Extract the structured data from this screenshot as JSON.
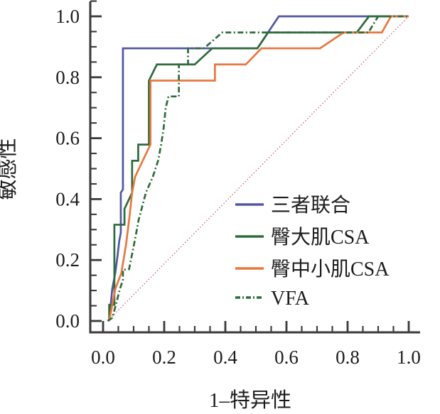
{
  "figure": {
    "background": "#ffffff",
    "axis_color": "#3a3a3a",
    "text_color": "#1c1c1c"
  },
  "chart_data": {
    "type": "line",
    "subtype": "roc-curve",
    "title": "",
    "xlabel": "1–特异性",
    "ylabel": "敏感性",
    "xlim": [
      0,
      1
    ],
    "ylim": [
      0,
      1
    ],
    "grid": "off",
    "tick_values": [
      0,
      0.2,
      0.4,
      0.6,
      0.8,
      1.0
    ],
    "x_tick_labels": [
      "0.0",
      "0.2",
      "0.4",
      "0.6",
      "0.8",
      "1.0"
    ],
    "y_tick_labels": [
      "0.0",
      "0.2",
      "0.4",
      "0.6",
      "0.8",
      "1.0"
    ],
    "minor_tick_step": 0.05,
    "legend_position": "lower right",
    "series": [
      {
        "name": "三者联合",
        "color": "#5057a3",
        "style": "solid",
        "points": [
          [
            0.02,
            0
          ],
          [
            0.03,
            0.105
          ],
          [
            0.04,
            0.158
          ],
          [
            0.047,
            0.211
          ],
          [
            0.053,
            0.263
          ],
          [
            0.058,
            0.29
          ],
          [
            0.058,
            0.421
          ],
          [
            0.065,
            0.432
          ],
          [
            0.065,
            0.895
          ],
          [
            0.505,
            0.895
          ],
          [
            0.575,
            1.0
          ],
          [
            1.0,
            1.0
          ]
        ]
      },
      {
        "name": "臀大肌CSA",
        "color": "#2e6b3a",
        "style": "solid",
        "points": [
          [
            0.02,
            0
          ],
          [
            0.02,
            0.053
          ],
          [
            0.037,
            0.053
          ],
          [
            0.037,
            0.316
          ],
          [
            0.07,
            0.316
          ],
          [
            0.07,
            0.368
          ],
          [
            0.095,
            0.421
          ],
          [
            0.095,
            0.526
          ],
          [
            0.115,
            0.526
          ],
          [
            0.115,
            0.579
          ],
          [
            0.15,
            0.579
          ],
          [
            0.15,
            0.789
          ],
          [
            0.176,
            0.842
          ],
          [
            0.3,
            0.842
          ],
          [
            0.357,
            0.895
          ],
          [
            0.505,
            0.895
          ],
          [
            0.54,
            0.947
          ],
          [
            0.83,
            0.947
          ],
          [
            0.87,
            1.0
          ],
          [
            1.0,
            1.0
          ]
        ]
      },
      {
        "name": "臀中小肌CSA",
        "color": "#e8773f",
        "style": "solid",
        "points": [
          [
            0.02,
            0
          ],
          [
            0.04,
            0.105
          ],
          [
            0.06,
            0.158
          ],
          [
            0.075,
            0.25
          ],
          [
            0.085,
            0.33
          ],
          [
            0.095,
            0.421
          ],
          [
            0.105,
            0.474
          ],
          [
            0.155,
            0.579
          ],
          [
            0.155,
            0.789
          ],
          [
            0.366,
            0.789
          ],
          [
            0.366,
            0.842
          ],
          [
            0.467,
            0.842
          ],
          [
            0.518,
            0.895
          ],
          [
            0.71,
            0.895
          ],
          [
            0.787,
            0.947
          ],
          [
            0.912,
            0.947
          ],
          [
            0.942,
            1.0
          ],
          [
            1.0,
            1.0
          ]
        ]
      },
      {
        "name": "VFA",
        "color": "#2e6b3a",
        "style": "dash-dot",
        "points": [
          [
            0.015,
            0
          ],
          [
            0.03,
            0.01
          ],
          [
            0.042,
            0.053
          ],
          [
            0.055,
            0.105
          ],
          [
            0.065,
            0.135
          ],
          [
            0.065,
            0.168
          ],
          [
            0.085,
            0.17
          ],
          [
            0.095,
            0.22
          ],
          [
            0.105,
            0.27
          ],
          [
            0.116,
            0.33
          ],
          [
            0.14,
            0.421
          ],
          [
            0.163,
            0.474
          ],
          [
            0.18,
            0.526
          ],
          [
            0.19,
            0.579
          ],
          [
            0.198,
            0.632
          ],
          [
            0.205,
            0.7
          ],
          [
            0.214,
            0.737
          ],
          [
            0.248,
            0.737
          ],
          [
            0.248,
            0.842
          ],
          [
            0.278,
            0.842
          ],
          [
            0.278,
            0.895
          ],
          [
            0.33,
            0.895
          ],
          [
            0.39,
            0.947
          ],
          [
            0.868,
            0.947
          ],
          [
            0.9,
            1.0
          ],
          [
            1.0,
            1.0
          ]
        ]
      }
    ],
    "reference_line": {
      "name": "chance-diagonal",
      "color": "#c4717f",
      "style": "dotted",
      "points": [
        [
          0.015,
          0
        ],
        [
          1.0,
          1.0
        ]
      ]
    },
    "legend": {
      "entries": [
        {
          "label": "三者联合",
          "color": "#5057a3",
          "style": "solid"
        },
        {
          "label": "臀大肌CSA",
          "color": "#2e6b3a",
          "style": "solid"
        },
        {
          "label": "臀中小肌CSA",
          "color": "#e8773f",
          "style": "solid"
        },
        {
          "label": "VFA",
          "color": "#2e6b3a",
          "style": "dash-dot"
        }
      ]
    }
  }
}
